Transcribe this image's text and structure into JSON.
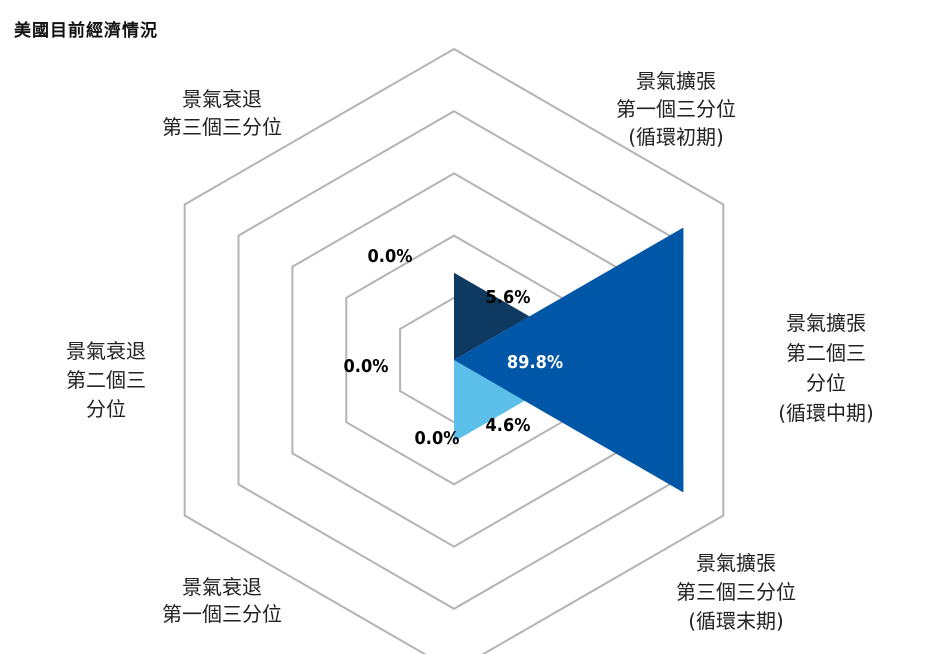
{
  "chart_data": {
    "type": "radar",
    "title": "美國目前經濟情況",
    "unit": "%",
    "segments": [
      {
        "label_lines": [
          "景氣擴張",
          "第二個三",
          "分位",
          "(循環中期)"
        ],
        "value": 89.8,
        "value_label": "89.8%",
        "color": "#0057a8"
      },
      {
        "label_lines": [
          "景氣擴張",
          "第三個三分位",
          "(循環末期)"
        ],
        "value": 4.6,
        "value_label": "4.6%",
        "color": "#5bbfea"
      },
      {
        "label_lines": [
          "景氣衰退",
          "第一個三分位"
        ],
        "value": 0.0,
        "value_label": "0.0%",
        "color": "#5bbfea"
      },
      {
        "label_lines": [
          "景氣衰退",
          "第二個三",
          "分位"
        ],
        "value": 0.0,
        "value_label": "0.0%",
        "color": "#5bbfea"
      },
      {
        "label_lines": [
          "景氣衰退",
          "第三個三分位"
        ],
        "value": 0.0,
        "value_label": "0.0%",
        "color": "#0e3a62"
      },
      {
        "label_lines": [
          "景氣擴張",
          "第一個三分位",
          "(循環初期)"
        ],
        "value": 5.6,
        "value_label": "5.6%",
        "color": "#0e3a62"
      }
    ],
    "grid_rings": 5
  }
}
